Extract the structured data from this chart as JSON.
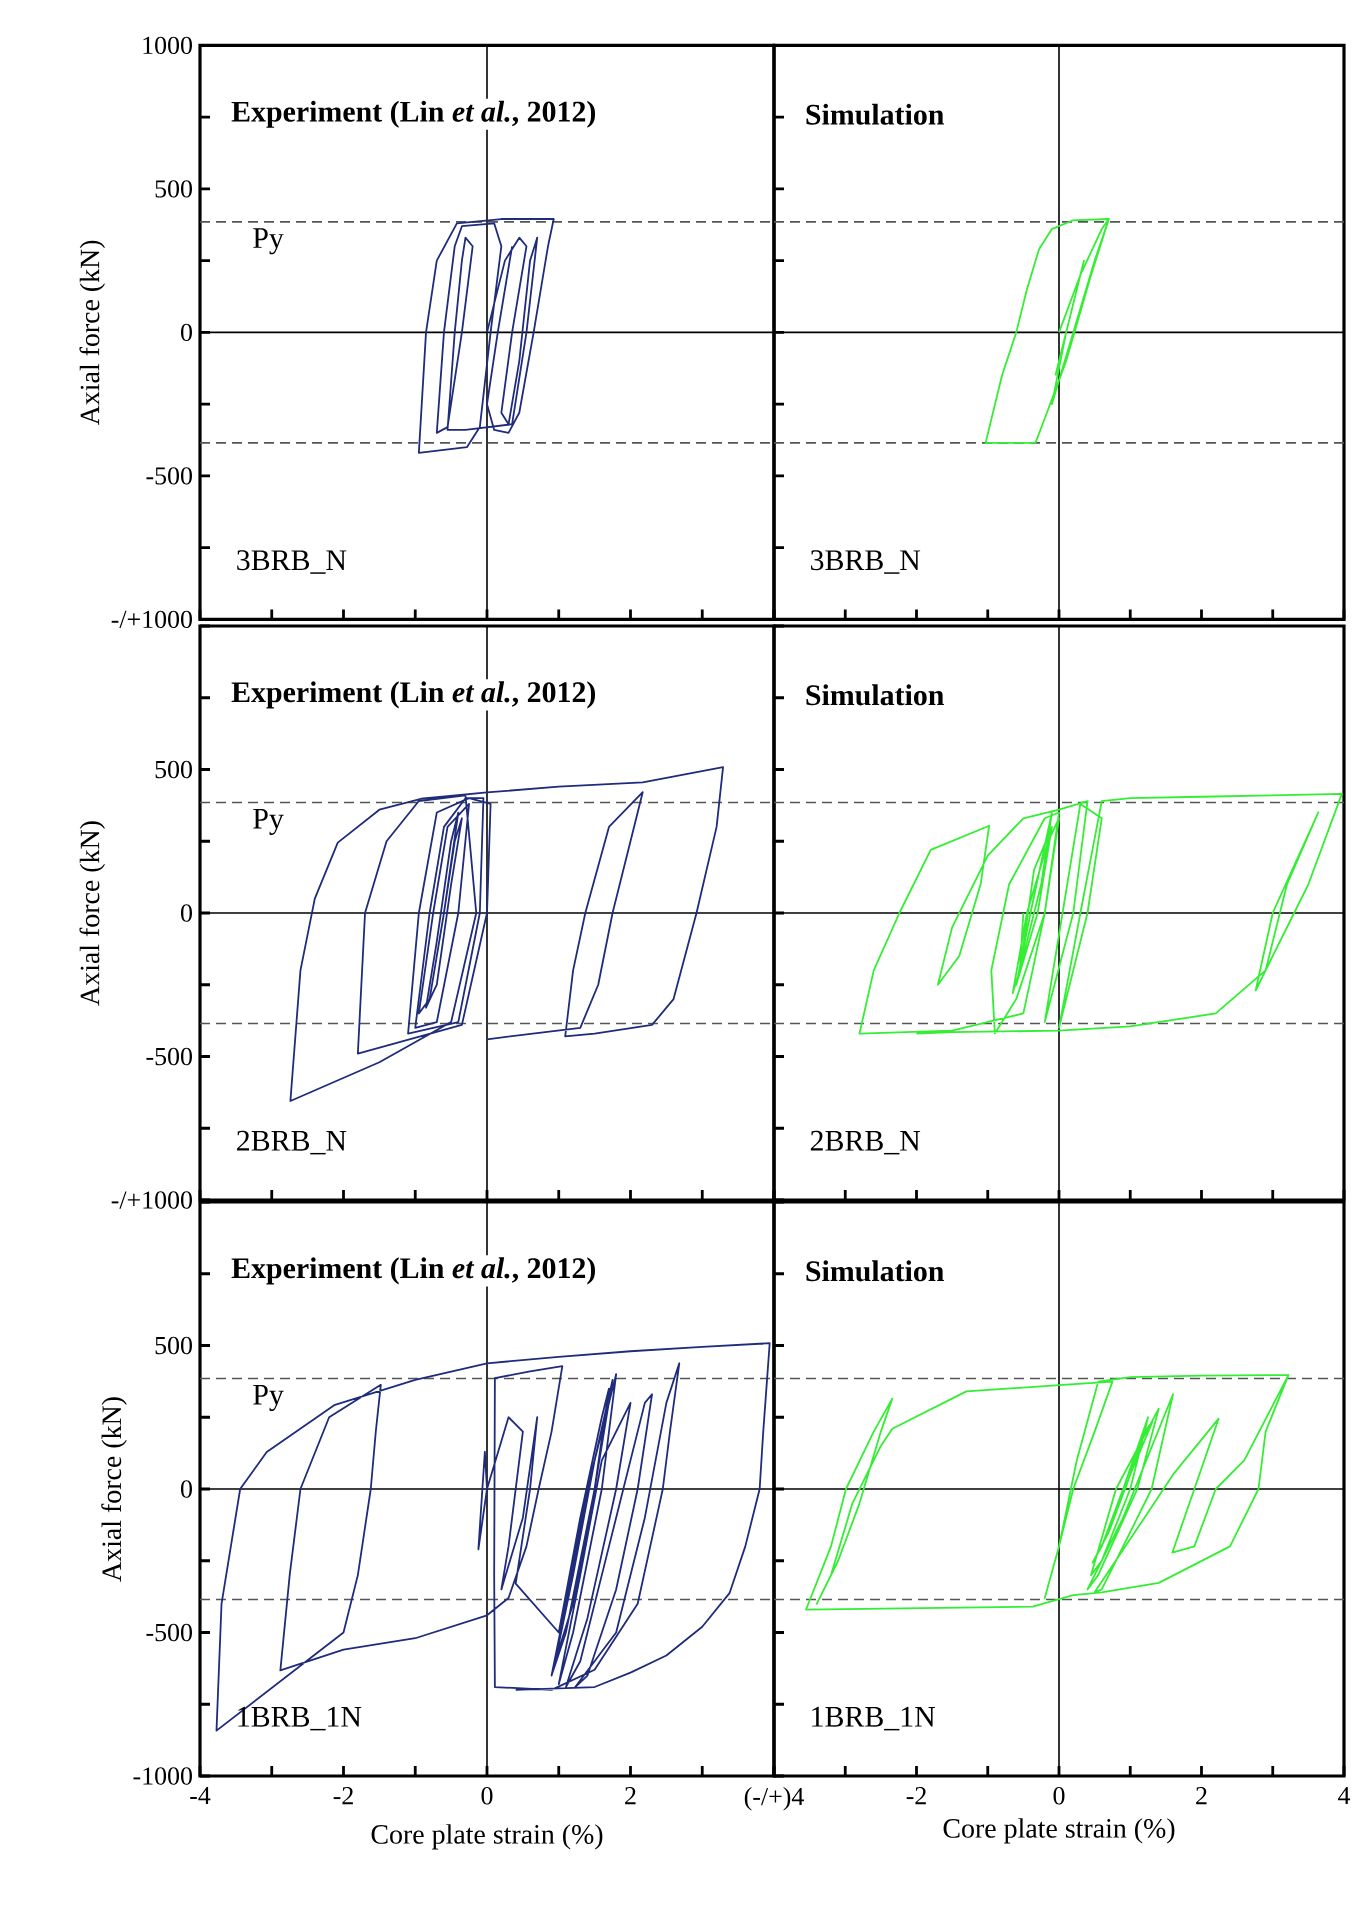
{
  "chart_data": [
    {
      "type": "line",
      "title": "Experiment (Lin *et al.*, 2012)",
      "ylabel": "Axial force (kN)",
      "annotations": [
        "3BRB_N"
      ],
      "xlim": [
        -4,
        4
      ],
      "ylim": [
        -1000,
        1000
      ],
      "tick_labels": "y",
      "xticks": [
        -4,
        -3,
        -2,
        -1,
        0,
        1,
        2,
        3,
        4
      ],
      "yticks": [
        {
          "value": -1000,
          "label": "-/+1000"
        },
        {
          "value": -750,
          "label": null
        },
        -500,
        {
          "value": -250,
          "label": null
        },
        0,
        {
          "value": 250,
          "label": null
        },
        500,
        {
          "value": 750,
          "label": null
        },
        1000
      ],
      "ref_lines": [
        {
          "axis": "x",
          "value": 0,
          "color": "#000000",
          "line_style": "solid"
        },
        {
          "axis": "y",
          "value": 0,
          "color": "#000000",
          "line_style": "solid"
        },
        {
          "axis": "y",
          "value": 385,
          "label": "Py",
          "color": "#555555",
          "line_style": "dashed"
        },
        {
          "axis": "y",
          "value": -385,
          "color": "#555555",
          "line_style": "dashed"
        }
      ],
      "series": [
        {
          "color": "#1f2b7b",
          "x": [
            0,
            0.25,
            0.45,
            0.55,
            0.35,
            0.2,
            0.3,
            0.45,
            0.6,
            0.7,
            0.55,
            0.35,
            -0.3,
            -0.55,
            -0.45,
            -0.35,
            -0.3,
            -0.2,
            -0.35,
            -0.55,
            -0.7,
            -0.6,
            -0.45,
            -0.35,
            0.1,
            0.2,
            0.05,
            -0.1,
            -0.28,
            -0.95,
            -0.85,
            -0.7,
            -0.42,
            0.2,
            0.93,
            0.85,
            0.65,
            0.45,
            0.3,
            0.1,
            0,
            0.15,
            0.35
          ],
          "values": [
            0,
            250,
            330,
            300,
            0,
            -280,
            -320,
            -100,
            250,
            330,
            0,
            -320,
            -340,
            -340,
            0,
            250,
            330,
            300,
            0,
            -330,
            -350,
            0,
            300,
            370,
            380,
            300,
            0,
            -330,
            -400,
            -420,
            0,
            250,
            380,
            395,
            395,
            300,
            0,
            -280,
            -350,
            -340,
            -250,
            0,
            300
          ]
        }
      ]
    },
    {
      "type": "line",
      "title": "Simulation",
      "annotations": [
        "3BRB_N"
      ],
      "xlim": [
        -4,
        4
      ],
      "ylim": [
        -1000,
        1000
      ],
      "tick_labels": false,
      "xticks": [
        -4,
        -3,
        -2,
        -1,
        0,
        1,
        2,
        3,
        4
      ],
      "yticks": [
        -1000,
        -750,
        -500,
        -250,
        0,
        250,
        500,
        750,
        1000
      ],
      "ref_lines": [
        {
          "axis": "x",
          "value": 0,
          "color": "#000000",
          "line_style": "solid"
        },
        {
          "axis": "y",
          "value": 0,
          "color": "#000000",
          "line_style": "solid"
        },
        {
          "axis": "y",
          "value": 385,
          "color": "#555555",
          "line_style": "dashed"
        },
        {
          "axis": "y",
          "value": -385,
          "color": "#555555",
          "line_style": "dashed"
        }
      ],
      "series": [
        {
          "color": "#33ee33",
          "x": [
            0,
            0.3,
            0.6,
            0.7,
            0.45,
            0.1,
            -0.2,
            -0.33,
            -1.03,
            -0.8,
            -0.6,
            -0.45,
            -0.28,
            -0.1,
            0.19,
            0.7,
            0.5,
            0.2,
            -0.1,
            0.1,
            0.35,
            0.2,
            -0.05
          ],
          "values": [
            0,
            200,
            360,
            395,
            200,
            -100,
            -300,
            -385,
            -385,
            -150,
            0,
            150,
            290,
            360,
            390,
            395,
            250,
            0,
            -250,
            0,
            250,
            100,
            -150
          ]
        }
      ]
    },
    {
      "type": "line",
      "title": "Experiment (Lin *et al.*, 2012)",
      "ylabel": "Axial force (kN)",
      "annotations": [
        "2BRB_N"
      ],
      "xlim": [
        -4,
        4
      ],
      "ylim": [
        -1000,
        1000
      ],
      "tick_labels": "y",
      "xticks": [
        -4,
        -3,
        -2,
        -1,
        0,
        1,
        2,
        3,
        4
      ],
      "yticks": [
        {
          "value": -1000,
          "label": "-/+1000"
        },
        {
          "value": -750,
          "label": null
        },
        -500,
        {
          "value": -250,
          "label": null
        },
        0,
        {
          "value": 250,
          "label": null
        },
        500,
        {
          "value": 750,
          "label": null
        },
        {
          "value": 1000,
          "label": null
        }
      ],
      "ref_lines": [
        {
          "axis": "x",
          "value": 0,
          "color": "#000000",
          "line_style": "solid"
        },
        {
          "axis": "y",
          "value": 0,
          "color": "#000000",
          "line_style": "solid"
        },
        {
          "axis": "y",
          "value": 385,
          "label": "Py",
          "color": "#555555",
          "line_style": "dashed"
        },
        {
          "axis": "y",
          "value": -385,
          "color": "#555555",
          "line_style": "dashed"
        }
      ],
      "series": [
        {
          "color": "#1f2b7b",
          "x": [
            -0.6,
            -0.45,
            -0.35,
            -0.5,
            -0.7,
            -0.85,
            -0.7,
            -0.5,
            -0.4,
            -0.6,
            -0.8,
            -0.95,
            -0.75,
            -0.55,
            -0.25,
            -0.4,
            -0.7,
            -1.0,
            -0.8,
            -0.6,
            -0.3,
            -0.05,
            -0.1,
            -0.4,
            -1.1,
            -0.95,
            -0.7,
            -0.25,
            0.05,
            0,
            -0.35,
            -1.8,
            -1.7,
            -1.4,
            -0.95,
            -0.3,
            -0.15,
            -0.5,
            -1.5,
            -2.74,
            -2.6,
            -2.4,
            -2.08,
            -1.5,
            -0.92,
            0,
            1.0,
            2.17,
            3.29,
            3.2,
            2.92,
            2.6,
            2.3,
            1.5,
            1.09,
            1.2,
            1.37,
            1.7,
            2.17,
            2.0,
            1.75,
            1.55,
            1.3,
            0
          ],
          "values": [
            0,
            250,
            330,
            100,
            -250,
            -330,
            -100,
            250,
            350,
            0,
            -300,
            -350,
            0,
            300,
            380,
            0,
            -380,
            -400,
            0,
            300,
            400,
            400,
            0,
            -380,
            -420,
            0,
            350,
            400,
            380,
            0,
            -390,
            -490,
            0,
            250,
            390,
            410,
            0,
            -380,
            -520,
            -655,
            -200,
            50,
            245,
            360,
            398,
            420,
            440,
            455,
            508,
            300,
            0,
            -300,
            -390,
            -420,
            -430,
            -200,
            0,
            300,
            421,
            250,
            0,
            -250,
            -400,
            -440
          ]
        }
      ]
    },
    {
      "type": "line",
      "title": "Simulation",
      "annotations": [
        "2BRB_N"
      ],
      "xlim": [
        -4,
        4
      ],
      "ylim": [
        -1000,
        1000
      ],
      "tick_labels": false,
      "xticks": [
        -4,
        -3,
        -2,
        -1,
        0,
        1,
        2,
        3,
        4
      ],
      "yticks": [
        -1000,
        -750,
        -500,
        -250,
        0,
        250,
        500,
        750,
        1000
      ],
      "ref_lines": [
        {
          "axis": "x",
          "value": 0,
          "color": "#000000",
          "line_style": "solid"
        },
        {
          "axis": "y",
          "value": 0,
          "color": "#000000",
          "line_style": "solid"
        },
        {
          "axis": "y",
          "value": 385,
          "color": "#555555",
          "line_style": "dashed"
        },
        {
          "axis": "y",
          "value": -385,
          "color": "#555555",
          "line_style": "dashed"
        }
      ],
      "series": [
        {
          "color": "#33ee33",
          "x": [
            -0.5,
            -0.55,
            -0.35,
            -0.1,
            -0.3,
            -0.6,
            -0.4,
            -0.1,
            -0.25,
            -0.55,
            -0.65,
            -0.45,
            -0.15,
            0,
            -0.2,
            -0.6,
            -0.9,
            -0.95,
            -0.7,
            -0.2,
            0,
            -0.2,
            -0.5,
            -1.5,
            -2.8,
            -2.6,
            -2.24,
            -1.8,
            -0.98,
            -1.1,
            -1.4,
            -1.7,
            -1.5,
            -1.0,
            -0.5,
            0,
            0.4,
            0.2,
            -0.2,
            0.3,
            0.6,
            0.4,
            0,
            0.3,
            0.6,
            1.0,
            2.0,
            3.0,
            3.97,
            3.5,
            3.3,
            2.76,
            3.0,
            3.64,
            3.2,
            2.9,
            2.2,
            1.0,
            0,
            -1.5,
            -2.0
          ],
          "values": [
            0,
            -200,
            150,
            300,
            0,
            -250,
            0,
            350,
            100,
            -200,
            -280,
            0,
            250,
            330,
            0,
            -300,
            -420,
            -200,
            100,
            330,
            350,
            0,
            -350,
            -410,
            -420,
            -200,
            0,
            220,
            304,
            100,
            -150,
            -250,
            -50,
            200,
            330,
            360,
            390,
            0,
            -380,
            380,
            330,
            0,
            -400,
            0,
            390,
            400,
            405,
            410,
            415,
            100,
            0,
            -270,
            0,
            351,
            100,
            -200,
            -350,
            -395,
            -410,
            -415,
            -420
          ]
        }
      ]
    },
    {
      "type": "line",
      "title": "Experiment (Lin *et al.*, 2012)",
      "xlabel": "Core plate strain (%)",
      "ylabel": "Axial force (kN)",
      "annotations": [
        "1BRB_1N"
      ],
      "xlim": [
        -4,
        4
      ],
      "ylim": [
        -1000,
        1000
      ],
      "xticks": [
        -4,
        {
          "value": -3,
          "label": null
        },
        -2,
        {
          "value": -1,
          "label": null
        },
        0,
        {
          "value": 1,
          "label": null
        },
        2,
        {
          "value": 3,
          "label": null
        },
        {
          "value": 4,
          "label": "(-/+)4"
        }
      ],
      "yticks": [
        -1000,
        {
          "value": -750,
          "label": null
        },
        -500,
        {
          "value": -250,
          "label": null
        },
        0,
        {
          "value": 250,
          "label": null
        },
        500,
        {
          "value": 750,
          "label": null
        },
        {
          "value": 1000,
          "label": null
        }
      ],
      "ref_lines": [
        {
          "axis": "x",
          "value": 0,
          "color": "#000000",
          "line_style": "solid"
        },
        {
          "axis": "y",
          "value": 0,
          "color": "#000000",
          "line_style": "solid"
        },
        {
          "axis": "y",
          "value": 385,
          "label": "Py",
          "color": "#555555",
          "line_style": "dashed"
        },
        {
          "axis": "y",
          "value": -385,
          "color": "#555555",
          "line_style": "dashed"
        }
      ],
      "series": [
        {
          "color": "#1f2b7b",
          "x": [
            0,
            -0.12,
            -0.03,
            0,
            0.3,
            0.5,
            0.3,
            0.2,
            0.5,
            0.7,
            0.6,
            0.4,
            1.0,
            1.3,
            1.6,
            1.7,
            1.5,
            1.2,
            0.95,
            1.2,
            1.5,
            1.75,
            1.5,
            1.1,
            0.9,
            1.1,
            1.4,
            1.8,
            1.6,
            1.2,
            1.0,
            1.3,
            1.6,
            2.0,
            1.8,
            1.4,
            1.1,
            1.3,
            1.7,
            2.2,
            2.3,
            2.1,
            1.8,
            1.4,
            1.23,
            1.8,
            2.2,
            2.5,
            2.68,
            2.55,
            2.45,
            2.1,
            1.5,
            0.9,
            0.11,
            0.1,
            0.11,
            0.6,
            1.05,
            0.9,
            0.72,
            0.55,
            0.3,
            0,
            -1.0,
            -2.0,
            -2.88,
            -2.75,
            -2.6,
            -2.2,
            -1.48,
            -1.55,
            -1.62,
            -1.8,
            -2.0,
            -3.77,
            -3.7,
            -3.44,
            -3.07,
            -2.13,
            -1.0,
            0,
            1.0,
            2.0,
            3.0,
            3.94,
            3.85,
            3.8,
            3.6,
            3.38,
            3.0,
            2.5,
            2.0,
            1.5,
            0.4
          ],
          "values": [
            0,
            -210,
            130,
            0,
            250,
            200,
            -200,
            -350,
            -100,
            250,
            0,
            -330,
            -500,
            -100,
            250,
            350,
            0,
            -400,
            -600,
            -300,
            100,
            380,
            0,
            -500,
            -650,
            -400,
            0,
            400,
            0,
            -500,
            -680,
            -300,
            100,
            300,
            0,
            -450,
            -690,
            -600,
            -200,
            300,
            330,
            0,
            -350,
            -650,
            -690,
            -500,
            -100,
            300,
            438,
            200,
            0,
            -400,
            -630,
            -700,
            -690,
            -300,
            386,
            410,
            428,
            200,
            0,
            -200,
            -380,
            -440,
            -520,
            -560,
            -632,
            -300,
            0,
            250,
            363,
            200,
            0,
            -300,
            -500,
            -842,
            -400,
            0,
            129,
            292,
            380,
            438,
            460,
            480,
            495,
            508,
            200,
            0,
            -200,
            -363,
            -480,
            -580,
            -640,
            -690,
            -700
          ]
        }
      ]
    },
    {
      "type": "line",
      "title": "Simulation",
      "xlabel": "Core plate strain (%)",
      "annotations": [
        "1BRB_1N"
      ],
      "xlim": [
        -4,
        4
      ],
      "ylim": [
        -1000,
        1000
      ],
      "tick_labels": "x",
      "xticks": [
        {
          "value": -4,
          "label": null
        },
        {
          "value": -3,
          "label": null
        },
        -2,
        {
          "value": -1,
          "label": null
        },
        0,
        {
          "value": 1,
          "label": null
        },
        2,
        {
          "value": 3,
          "label": null
        },
        4
      ],
      "yticks": [
        -1000,
        -750,
        -500,
        -250,
        0,
        250,
        500,
        750,
        1000
      ],
      "ref_lines": [
        {
          "axis": "x",
          "value": 0,
          "color": "#000000",
          "line_style": "solid"
        },
        {
          "axis": "y",
          "value": 0,
          "color": "#000000",
          "line_style": "solid"
        },
        {
          "axis": "y",
          "value": 385,
          "color": "#555555",
          "line_style": "dashed"
        },
        {
          "axis": "y",
          "value": -385,
          "color": "#555555",
          "line_style": "dashed"
        }
      ],
      "series": [
        {
          "color": "#33ee33",
          "x": [
            0.93,
            1.2,
            1.31,
            1.0,
            0.7,
            0.47,
            0.6,
            0.9,
            1.25,
            1.0,
            0.6,
            0.45,
            0.8,
            1.4,
            1.1,
            0.55,
            0.4,
            0.9,
            1.6,
            1.3,
            0.6,
            0.5,
            1.2,
            1.6,
            2.24,
            1.9,
            1.59,
            1.9,
            2.2,
            2.6,
            3.22,
            2.9,
            2.8,
            2.4,
            1.4,
            0.6,
            0.2,
            -0.37,
            -3.55,
            -3.2,
            -2.99,
            -2.6,
            -2.34,
            -2.5,
            -2.8,
            -3.1,
            -3.4,
            -3.2,
            -2.9,
            -2.5,
            -2.34,
            -1.3,
            0,
            0.75,
            0.5,
            0.2,
            0,
            -0.2,
            0,
            0.25,
            0.55,
            1.0,
            2.0,
            3.22
          ],
          "values": [
            0,
            200,
            234,
            50,
            -150,
            -257,
            -200,
            0,
            250,
            0,
            -250,
            -300,
            0,
            280,
            0,
            -300,
            -350,
            -100,
            330,
            0,
            -350,
            -360,
            -100,
            50,
            245,
            0,
            -222,
            -200,
            0,
            100,
            397,
            200,
            0,
            -200,
            -327,
            -360,
            -370,
            -410,
            -420,
            -200,
            0,
            200,
            315,
            200,
            -50,
            -250,
            -400,
            -300,
            -50,
            150,
            210,
            340,
            362,
            374,
            200,
            0,
            -200,
            -380,
            -200,
            100,
            374,
            390,
            395,
            397
          ]
        }
      ]
    }
  ]
}
